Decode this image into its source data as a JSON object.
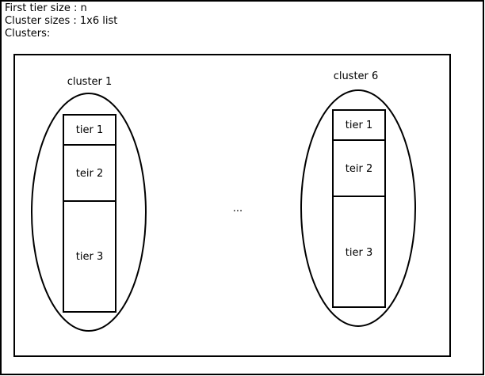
{
  "header": {
    "line1": "First tier size : n",
    "line2": "Cluster sizes : 1x6 list",
    "line3": "Clusters:"
  },
  "clusters": [
    {
      "label": "cluster 1",
      "tiers": [
        "tier 1",
        "teir 2",
        "tier 3"
      ]
    },
    {
      "label": "cluster 6",
      "tiers": [
        "tier 1",
        "teir 2",
        "tier 3"
      ]
    }
  ],
  "ellipsis": "..."
}
